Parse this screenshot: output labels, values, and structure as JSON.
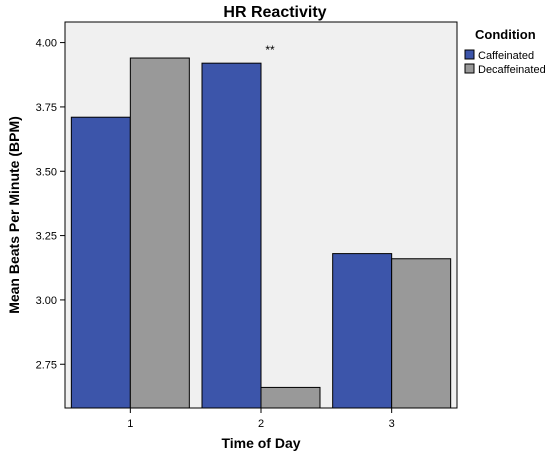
{
  "chart_data": {
    "type": "bar",
    "title": "HR Reactivity",
    "xlabel": "Time of Day",
    "ylabel": "Mean Beats Per Minute (BPM)",
    "categories": [
      "1",
      "2",
      "3"
    ],
    "series": [
      {
        "name": "Caffeinated",
        "values": [
          3.71,
          3.92,
          3.18
        ],
        "color": "#3c55aa"
      },
      {
        "name": "Decaffeinated",
        "values": [
          3.94,
          2.66,
          3.16
        ],
        "color": "#999999"
      }
    ],
    "ylim": [
      2.58,
      4.08
    ],
    "yticks": [
      "2.75",
      "3.00",
      "3.25",
      "3.50",
      "3.75",
      "4.00"
    ],
    "legend": {
      "title": "Condition",
      "placement": "right"
    },
    "annotations": [
      {
        "text": "**",
        "category": "2"
      }
    ],
    "background": "#f0f0f0"
  }
}
